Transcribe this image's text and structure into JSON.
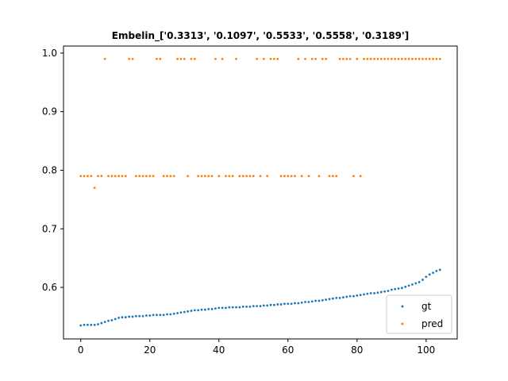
{
  "chart_data": {
    "type": "scatter",
    "title": "Embelin_['0.3313', '0.1097', '0.5533', '0.5558', '0.3189']",
    "xlabel": "",
    "ylabel": "",
    "xlim": [
      -5,
      109
    ],
    "ylim": [
      0.512,
      1.012
    ],
    "xticks": [
      0,
      20,
      40,
      60,
      80,
      100
    ],
    "yticks": [
      0.6,
      0.7,
      0.8,
      0.9,
      1.0
    ],
    "ytick_labels": [
      "0.6",
      "0.7",
      "0.8",
      "0.9",
      "1.0"
    ],
    "grid": false,
    "legend": "bottom-right",
    "colors": {
      "gt": "#1f77b4",
      "pred": "#ff7f0e"
    },
    "series": [
      {
        "name": "gt",
        "x": [
          0,
          1,
          2,
          3,
          4,
          5,
          6,
          7,
          8,
          9,
          10,
          11,
          12,
          13,
          14,
          15,
          16,
          17,
          18,
          19,
          20,
          21,
          22,
          23,
          24,
          25,
          26,
          27,
          28,
          29,
          30,
          31,
          32,
          33,
          34,
          35,
          36,
          37,
          38,
          39,
          40,
          41,
          42,
          43,
          44,
          45,
          46,
          47,
          48,
          49,
          50,
          51,
          52,
          53,
          54,
          55,
          56,
          57,
          58,
          59,
          60,
          61,
          62,
          63,
          64,
          65,
          66,
          67,
          68,
          69,
          70,
          71,
          72,
          73,
          74,
          75,
          76,
          77,
          78,
          79,
          80,
          81,
          82,
          83,
          84,
          85,
          86,
          87,
          88,
          89,
          90,
          91,
          92,
          93,
          94,
          95,
          96,
          97,
          98,
          99,
          100,
          101,
          102,
          103,
          104
        ],
        "y": [
          0.535,
          0.536,
          0.536,
          0.536,
          0.536,
          0.537,
          0.539,
          0.541,
          0.543,
          0.544,
          0.546,
          0.548,
          0.549,
          0.549,
          0.55,
          0.55,
          0.551,
          0.551,
          0.551,
          0.552,
          0.552,
          0.553,
          0.553,
          0.553,
          0.553,
          0.554,
          0.554,
          0.555,
          0.556,
          0.557,
          0.558,
          0.559,
          0.56,
          0.561,
          0.561,
          0.562,
          0.562,
          0.563,
          0.563,
          0.564,
          0.565,
          0.565,
          0.565,
          0.566,
          0.566,
          0.566,
          0.566,
          0.567,
          0.567,
          0.567,
          0.568,
          0.568,
          0.568,
          0.569,
          0.569,
          0.57,
          0.57,
          0.571,
          0.571,
          0.572,
          0.572,
          0.572,
          0.573,
          0.573,
          0.574,
          0.575,
          0.575,
          0.576,
          0.577,
          0.577,
          0.578,
          0.579,
          0.58,
          0.581,
          0.582,
          0.582,
          0.583,
          0.584,
          0.585,
          0.585,
          0.586,
          0.587,
          0.588,
          0.589,
          0.59,
          0.59,
          0.591,
          0.592,
          0.593,
          0.594,
          0.596,
          0.597,
          0.598,
          0.599,
          0.601,
          0.603,
          0.605,
          0.607,
          0.609,
          0.613,
          0.618,
          0.622,
          0.625,
          0.628,
          0.63
        ]
      },
      {
        "name": "pred",
        "x": [
          0,
          1,
          2,
          3,
          4,
          5,
          6,
          7,
          8,
          9,
          10,
          11,
          12,
          13,
          14,
          15,
          16,
          17,
          18,
          19,
          20,
          21,
          22,
          23,
          24,
          25,
          26,
          27,
          28,
          29,
          30,
          31,
          32,
          33,
          34,
          35,
          36,
          37,
          38,
          39,
          40,
          41,
          42,
          43,
          44,
          45,
          46,
          47,
          48,
          49,
          50,
          51,
          52,
          53,
          54,
          55,
          56,
          57,
          58,
          59,
          60,
          61,
          62,
          63,
          64,
          65,
          66,
          67,
          68,
          69,
          70,
          71,
          72,
          73,
          74,
          75,
          76,
          77,
          78,
          79,
          80,
          81,
          82,
          83,
          84,
          85,
          86,
          87,
          88,
          89,
          90,
          91,
          92,
          93,
          94,
          95,
          96,
          97,
          98,
          99,
          100,
          101,
          102,
          103,
          104
        ],
        "y": [
          0.79,
          0.79,
          0.79,
          0.79,
          0.77,
          0.79,
          0.79,
          0.99,
          0.79,
          0.79,
          0.79,
          0.79,
          0.79,
          0.79,
          0.99,
          0.99,
          0.79,
          0.79,
          0.79,
          0.79,
          0.79,
          0.79,
          0.99,
          0.99,
          0.79,
          0.79,
          0.79,
          0.79,
          0.99,
          0.99,
          0.99,
          0.79,
          0.99,
          0.99,
          0.79,
          0.79,
          0.79,
          0.79,
          0.79,
          0.99,
          0.79,
          0.99,
          0.79,
          0.79,
          0.79,
          0.99,
          0.79,
          0.79,
          0.79,
          0.79,
          0.79,
          0.99,
          0.79,
          0.99,
          0.79,
          0.99,
          0.99,
          0.99,
          0.79,
          0.79,
          0.79,
          0.79,
          0.79,
          0.99,
          0.79,
          0.99,
          0.79,
          0.99,
          0.99,
          0.79,
          0.99,
          0.99,
          0.79,
          0.79,
          0.79,
          0.99,
          0.99,
          0.99,
          0.99,
          0.79,
          0.99,
          0.79,
          0.99,
          0.99,
          0.99,
          0.99,
          0.99,
          0.99,
          0.99,
          0.99,
          0.99,
          0.99,
          0.99,
          0.99,
          0.99,
          0.99,
          0.99,
          0.99,
          0.99,
          0.99,
          0.99,
          0.99,
          0.99,
          0.99,
          0.99
        ]
      }
    ]
  }
}
